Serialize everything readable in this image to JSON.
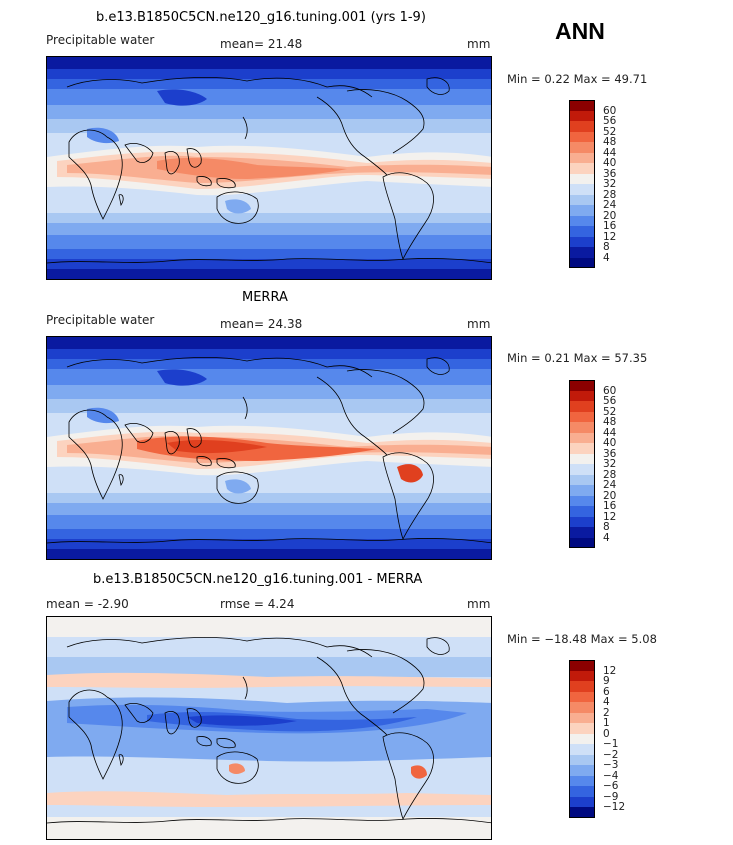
{
  "season": "ANN",
  "units": "mm",
  "panels": [
    {
      "title": "b.e13.B1850C5CN.ne120_g16.tuning.001 (yrs 1-9)",
      "field": "Precipitable water",
      "stat_left": "",
      "stat_mid": "mean=  21.48",
      "minmax": "Min =   0.22 Max =  49.71",
      "colorbar": [
        "60",
        "56",
        "52",
        "48",
        "44",
        "40",
        "36",
        "32",
        "28",
        "24",
        "20",
        "16",
        "12",
        "8",
        "4"
      ],
      "colors": [
        "#8b0000",
        "#c11a0a",
        "#e0401f",
        "#f0653f",
        "#f58a66",
        "#f9ae91",
        "#fcd3bf",
        "#f3f1ee",
        "#cfe0f7",
        "#a9c8f2",
        "#7faaf0",
        "#5688ec",
        "#3464e0",
        "#1c3fcc",
        "#0a1aa0",
        "#000a80"
      ]
    },
    {
      "title": "MERRA",
      "field": "Precipitable water",
      "stat_left": "",
      "stat_mid": "mean=  24.38",
      "minmax": "Min =   0.21 Max =  57.35",
      "colorbar": [
        "60",
        "56",
        "52",
        "48",
        "44",
        "40",
        "36",
        "32",
        "28",
        "24",
        "20",
        "16",
        "12",
        "8",
        "4"
      ],
      "colors": [
        "#8b0000",
        "#c11a0a",
        "#e0401f",
        "#f0653f",
        "#f58a66",
        "#f9ae91",
        "#fcd3bf",
        "#f3f1ee",
        "#cfe0f7",
        "#a9c8f2",
        "#7faaf0",
        "#5688ec",
        "#3464e0",
        "#1c3fcc",
        "#0a1aa0",
        "#000a80"
      ]
    },
    {
      "title": "b.e13.B1850C5CN.ne120_g16.tuning.001 - MERRA",
      "field": "",
      "stat_left": "mean =   -2.90",
      "stat_mid": "rmse =    4.24",
      "minmax": "Min = −18.48 Max =   5.08",
      "colorbar": [
        "12",
        "9",
        "6",
        "4",
        "2",
        "1",
        "0",
        "−1",
        "−2",
        "−3",
        "−4",
        "−6",
        "−9",
        "−12"
      ],
      "colors": [
        "#8b0000",
        "#c11a0a",
        "#e0401f",
        "#f0653f",
        "#f58a66",
        "#f9ae91",
        "#fcd3bf",
        "#f3f1ee",
        "#cfe0f7",
        "#a9c8f2",
        "#7faaf0",
        "#5688ec",
        "#3464e0",
        "#1c3fcc",
        "#000a80"
      ]
    }
  ]
}
